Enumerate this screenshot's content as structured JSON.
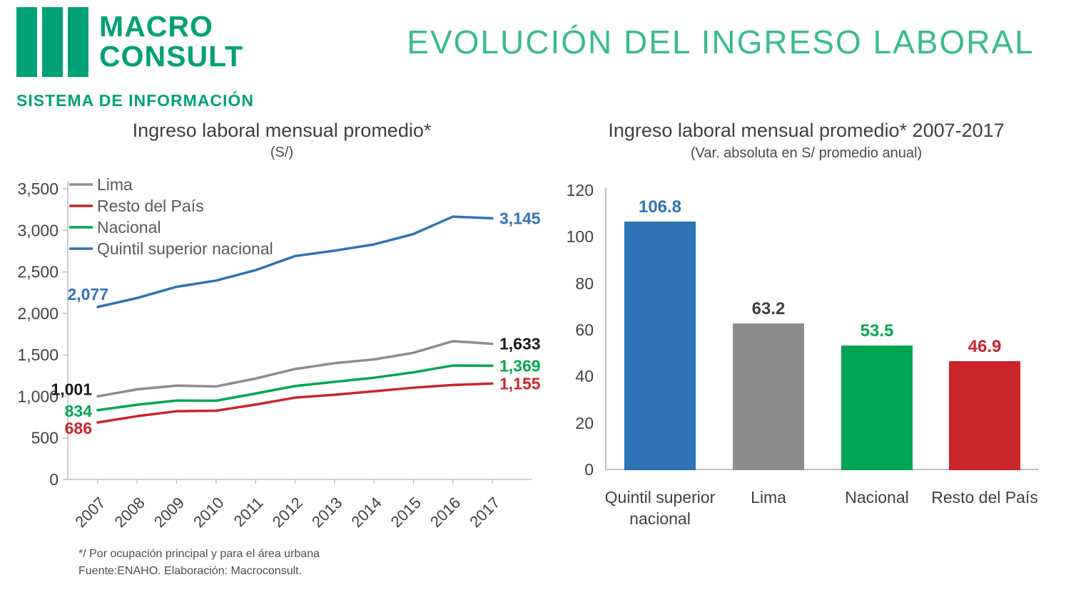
{
  "header": {
    "logo_line1": "MACRO",
    "logo_line2": "CONSULT",
    "system_label": "SISTEMA DE INFORMACIÓN",
    "title": "EVOLUCIÓN DEL INGRESO LABORAL"
  },
  "colors": {
    "brand_green": "#00A176",
    "title_green": "#3BBA90",
    "axis_gray": "#BFBFBF",
    "text_dark": "#404040",
    "legend_text": "#595959",
    "lima_gray": "#8C8C8C",
    "resto_red": "#C9252B",
    "nacional_green": "#00A651",
    "quintil_blue": "#2E74B5"
  },
  "chart_data": [
    {
      "type": "line",
      "title": "Ingreso laboral mensual promedio*",
      "subtitle": "(S/)",
      "x": [
        2007,
        2008,
        2009,
        2010,
        2011,
        2012,
        2013,
        2014,
        2015,
        2016,
        2017
      ],
      "ylim": [
        0,
        3500
      ],
      "yticks": [
        0,
        500,
        1000,
        1500,
        2000,
        2500,
        3000,
        3500
      ],
      "grid": false,
      "legend_position": "inside-top-left",
      "series": [
        {
          "name": "Lima",
          "color": "#8C8C8C",
          "label_color": "#1A1A1A",
          "first_label": "1,001",
          "last_label": "1,633",
          "values": [
            1001,
            1085,
            1130,
            1120,
            1215,
            1330,
            1400,
            1445,
            1525,
            1665,
            1633
          ]
        },
        {
          "name": "Resto del País",
          "color": "#C9252B",
          "label_color": "#C9252B",
          "first_label": "686",
          "last_label": "1,155",
          "values": [
            686,
            762,
            822,
            828,
            902,
            985,
            1020,
            1062,
            1105,
            1138,
            1155
          ]
        },
        {
          "name": "Nacional",
          "color": "#00A651",
          "label_color": "#00A651",
          "first_label": "834",
          "last_label": "1,369",
          "values": [
            834,
            900,
            950,
            948,
            1035,
            1125,
            1175,
            1225,
            1290,
            1372,
            1369
          ]
        },
        {
          "name": "Quintil superior nacional",
          "color": "#2E74B5",
          "label_color": "#2E74B5",
          "first_label": "2,077",
          "last_label": "3,145",
          "values": [
            2077,
            2185,
            2320,
            2395,
            2520,
            2690,
            2755,
            2830,
            2955,
            3165,
            3145
          ]
        }
      ]
    },
    {
      "type": "bar",
      "title": "Ingreso laboral mensual promedio* 2007-2017",
      "subtitle": "(Var. absoluta en S/ promedio anual)",
      "categories": [
        "Quintil superior nacional",
        "Lima",
        "Nacional",
        "Resto del País"
      ],
      "values": [
        106.8,
        63.2,
        53.5,
        46.9
      ],
      "value_labels": [
        "106.8",
        "63.2",
        "53.5",
        "46.9"
      ],
      "colors": [
        "#2E74B5",
        "#8C8C8C",
        "#00A651",
        "#C9252B"
      ],
      "value_label_colors": [
        "#2E74B5",
        "#404040",
        "#00A651",
        "#C9252B"
      ],
      "ylim": [
        0,
        120
      ],
      "yticks": [
        0,
        20,
        40,
        60,
        80,
        100,
        120
      ],
      "grid": false
    }
  ],
  "footnotes": {
    "line1": "*/ Por ocupación principal y para el área urbana",
    "line2": "Fuente:ENAHO. Elaboración: Macroconsult."
  }
}
